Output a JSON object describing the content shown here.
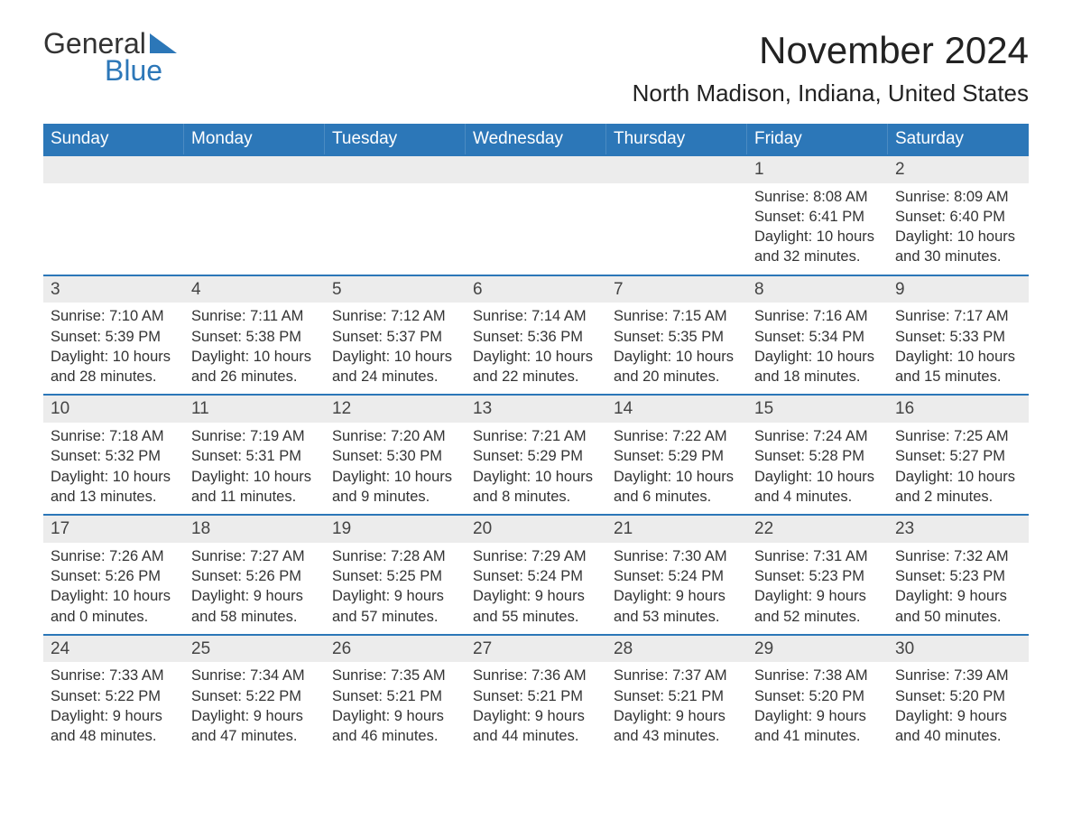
{
  "logo": {
    "text1": "General",
    "text2": "Blue",
    "triangle_color": "#2c77b8"
  },
  "title": "November 2024",
  "location": "North Madison, Indiana, United States",
  "colors": {
    "header_bg": "#2c77b8",
    "header_text": "#ffffff",
    "row_border": "#2c77b8",
    "daynum_bg": "#ececec",
    "text": "#333333"
  },
  "weekdays": [
    "Sunday",
    "Monday",
    "Tuesday",
    "Wednesday",
    "Thursday",
    "Friday",
    "Saturday"
  ],
  "weeks": [
    [
      null,
      null,
      null,
      null,
      null,
      {
        "day": "1",
        "sunrise": "Sunrise: 8:08 AM",
        "sunset": "Sunset: 6:41 PM",
        "daylight1": "Daylight: 10 hours",
        "daylight2": "and 32 minutes."
      },
      {
        "day": "2",
        "sunrise": "Sunrise: 8:09 AM",
        "sunset": "Sunset: 6:40 PM",
        "daylight1": "Daylight: 10 hours",
        "daylight2": "and 30 minutes."
      }
    ],
    [
      {
        "day": "3",
        "sunrise": "Sunrise: 7:10 AM",
        "sunset": "Sunset: 5:39 PM",
        "daylight1": "Daylight: 10 hours",
        "daylight2": "and 28 minutes."
      },
      {
        "day": "4",
        "sunrise": "Sunrise: 7:11 AM",
        "sunset": "Sunset: 5:38 PM",
        "daylight1": "Daylight: 10 hours",
        "daylight2": "and 26 minutes."
      },
      {
        "day": "5",
        "sunrise": "Sunrise: 7:12 AM",
        "sunset": "Sunset: 5:37 PM",
        "daylight1": "Daylight: 10 hours",
        "daylight2": "and 24 minutes."
      },
      {
        "day": "6",
        "sunrise": "Sunrise: 7:14 AM",
        "sunset": "Sunset: 5:36 PM",
        "daylight1": "Daylight: 10 hours",
        "daylight2": "and 22 minutes."
      },
      {
        "day": "7",
        "sunrise": "Sunrise: 7:15 AM",
        "sunset": "Sunset: 5:35 PM",
        "daylight1": "Daylight: 10 hours",
        "daylight2": "and 20 minutes."
      },
      {
        "day": "8",
        "sunrise": "Sunrise: 7:16 AM",
        "sunset": "Sunset: 5:34 PM",
        "daylight1": "Daylight: 10 hours",
        "daylight2": "and 18 minutes."
      },
      {
        "day": "9",
        "sunrise": "Sunrise: 7:17 AM",
        "sunset": "Sunset: 5:33 PM",
        "daylight1": "Daylight: 10 hours",
        "daylight2": "and 15 minutes."
      }
    ],
    [
      {
        "day": "10",
        "sunrise": "Sunrise: 7:18 AM",
        "sunset": "Sunset: 5:32 PM",
        "daylight1": "Daylight: 10 hours",
        "daylight2": "and 13 minutes."
      },
      {
        "day": "11",
        "sunrise": "Sunrise: 7:19 AM",
        "sunset": "Sunset: 5:31 PM",
        "daylight1": "Daylight: 10 hours",
        "daylight2": "and 11 minutes."
      },
      {
        "day": "12",
        "sunrise": "Sunrise: 7:20 AM",
        "sunset": "Sunset: 5:30 PM",
        "daylight1": "Daylight: 10 hours",
        "daylight2": "and 9 minutes."
      },
      {
        "day": "13",
        "sunrise": "Sunrise: 7:21 AM",
        "sunset": "Sunset: 5:29 PM",
        "daylight1": "Daylight: 10 hours",
        "daylight2": "and 8 minutes."
      },
      {
        "day": "14",
        "sunrise": "Sunrise: 7:22 AM",
        "sunset": "Sunset: 5:29 PM",
        "daylight1": "Daylight: 10 hours",
        "daylight2": "and 6 minutes."
      },
      {
        "day": "15",
        "sunrise": "Sunrise: 7:24 AM",
        "sunset": "Sunset: 5:28 PM",
        "daylight1": "Daylight: 10 hours",
        "daylight2": "and 4 minutes."
      },
      {
        "day": "16",
        "sunrise": "Sunrise: 7:25 AM",
        "sunset": "Sunset: 5:27 PM",
        "daylight1": "Daylight: 10 hours",
        "daylight2": "and 2 minutes."
      }
    ],
    [
      {
        "day": "17",
        "sunrise": "Sunrise: 7:26 AM",
        "sunset": "Sunset: 5:26 PM",
        "daylight1": "Daylight: 10 hours",
        "daylight2": "and 0 minutes."
      },
      {
        "day": "18",
        "sunrise": "Sunrise: 7:27 AM",
        "sunset": "Sunset: 5:26 PM",
        "daylight1": "Daylight: 9 hours",
        "daylight2": "and 58 minutes."
      },
      {
        "day": "19",
        "sunrise": "Sunrise: 7:28 AM",
        "sunset": "Sunset: 5:25 PM",
        "daylight1": "Daylight: 9 hours",
        "daylight2": "and 57 minutes."
      },
      {
        "day": "20",
        "sunrise": "Sunrise: 7:29 AM",
        "sunset": "Sunset: 5:24 PM",
        "daylight1": "Daylight: 9 hours",
        "daylight2": "and 55 minutes."
      },
      {
        "day": "21",
        "sunrise": "Sunrise: 7:30 AM",
        "sunset": "Sunset: 5:24 PM",
        "daylight1": "Daylight: 9 hours",
        "daylight2": "and 53 minutes."
      },
      {
        "day": "22",
        "sunrise": "Sunrise: 7:31 AM",
        "sunset": "Sunset: 5:23 PM",
        "daylight1": "Daylight: 9 hours",
        "daylight2": "and 52 minutes."
      },
      {
        "day": "23",
        "sunrise": "Sunrise: 7:32 AM",
        "sunset": "Sunset: 5:23 PM",
        "daylight1": "Daylight: 9 hours",
        "daylight2": "and 50 minutes."
      }
    ],
    [
      {
        "day": "24",
        "sunrise": "Sunrise: 7:33 AM",
        "sunset": "Sunset: 5:22 PM",
        "daylight1": "Daylight: 9 hours",
        "daylight2": "and 48 minutes."
      },
      {
        "day": "25",
        "sunrise": "Sunrise: 7:34 AM",
        "sunset": "Sunset: 5:22 PM",
        "daylight1": "Daylight: 9 hours",
        "daylight2": "and 47 minutes."
      },
      {
        "day": "26",
        "sunrise": "Sunrise: 7:35 AM",
        "sunset": "Sunset: 5:21 PM",
        "daylight1": "Daylight: 9 hours",
        "daylight2": "and 46 minutes."
      },
      {
        "day": "27",
        "sunrise": "Sunrise: 7:36 AM",
        "sunset": "Sunset: 5:21 PM",
        "daylight1": "Daylight: 9 hours",
        "daylight2": "and 44 minutes."
      },
      {
        "day": "28",
        "sunrise": "Sunrise: 7:37 AM",
        "sunset": "Sunset: 5:21 PM",
        "daylight1": "Daylight: 9 hours",
        "daylight2": "and 43 minutes."
      },
      {
        "day": "29",
        "sunrise": "Sunrise: 7:38 AM",
        "sunset": "Sunset: 5:20 PM",
        "daylight1": "Daylight: 9 hours",
        "daylight2": "and 41 minutes."
      },
      {
        "day": "30",
        "sunrise": "Sunrise: 7:39 AM",
        "sunset": "Sunset: 5:20 PM",
        "daylight1": "Daylight: 9 hours",
        "daylight2": "and 40 minutes."
      }
    ]
  ]
}
